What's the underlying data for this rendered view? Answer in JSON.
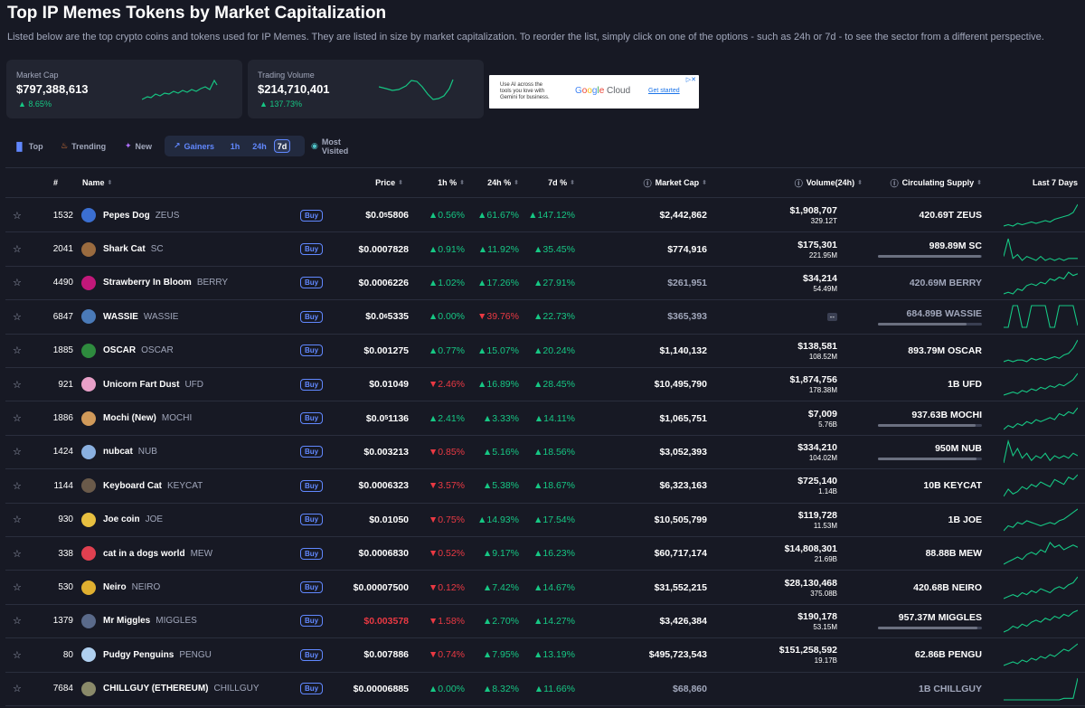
{
  "page": {
    "title": "Top IP Memes Tokens by Market Capitalization",
    "description": "Listed below are the top crypto coins and tokens used for IP Memes. They are listed in size by market capitalization. To reorder the list, simply click on one of the options - such as 24h or 7d - to see the sector from a different perspective."
  },
  "cards": [
    {
      "label": "Market Cap",
      "value": "$797,388,613",
      "change": "8.65%"
    },
    {
      "label": "Trading Volume",
      "value": "$214,710,401",
      "change": "137.73%"
    }
  ],
  "ad": {
    "text": "Use AI across the tools you love with Gemini for business.",
    "brand": "Google Cloud",
    "cta": "Get started"
  },
  "tabs": {
    "top": "Top",
    "trending": "Trending",
    "new": "New",
    "gainers": "Gainers",
    "p1h": "1h",
    "p24h": "24h",
    "p7d": "7d",
    "most_visited": "Most Visited"
  },
  "columns": {
    "rank": "#",
    "name": "Name",
    "price": "Price",
    "h1": "1h %",
    "h24": "24h %",
    "d7": "7d %",
    "market_cap": "Market Cap",
    "volume": "Volume(24h)",
    "supply": "Circulating Supply",
    "last7": "Last 7 Days"
  },
  "buy_label": "Buy",
  "rows": [
    {
      "rank": "1532",
      "name": "Pepes Dog",
      "symbol": "ZEUS",
      "price": "$0.0",
      "price_sub": "5",
      "price_tail": "5806",
      "h1": "0.56%",
      "h1_dir": "up",
      "h24": "61.67%",
      "h24_dir": "up",
      "d7": "147.12%",
      "d7_dir": "up",
      "mcap": "$2,442,862",
      "vol": "$1,908,707",
      "vol2": "329.12T",
      "supply": "420.69T ZEUS",
      "bar": 0,
      "logo": "#3b6fd1",
      "spark": [
        2,
        3,
        2,
        4,
        3,
        4,
        5,
        4,
        5,
        6,
        5,
        7,
        8,
        9,
        10,
        12,
        18
      ]
    },
    {
      "rank": "2041",
      "name": "Shark Cat",
      "symbol": "SC",
      "price": "$0.0007828",
      "h1": "0.91%",
      "h1_dir": "up",
      "h24": "11.92%",
      "h24_dir": "up",
      "d7": "35.45%",
      "d7_dir": "up",
      "mcap": "$774,916",
      "vol": "$175,301",
      "vol2": "221.95M",
      "supply": "989.89M SC",
      "bar": 0.99,
      "logo": "#9a6b3f",
      "spark": [
        8,
        17,
        7,
        9,
        6,
        8,
        7,
        6,
        8,
        6,
        7,
        6,
        7,
        6,
        7,
        7,
        7
      ]
    },
    {
      "rank": "4490",
      "name": "Strawberry In Bloom",
      "symbol": "BERRY",
      "price": "$0.0006226",
      "h1": "1.02%",
      "h1_dir": "up",
      "h24": "17.26%",
      "h24_dir": "up",
      "d7": "27.91%",
      "d7_dir": "up",
      "mcap": "$261,951",
      "mcap_dim": true,
      "vol": "$34,214",
      "vol2": "54.49M",
      "supply": "420.69M BERRY",
      "supply_dim": true,
      "bar": 0,
      "logo": "#c2187a",
      "spark": [
        3,
        4,
        3,
        6,
        5,
        8,
        9,
        8,
        10,
        9,
        12,
        11,
        13,
        12,
        16,
        14,
        15
      ]
    },
    {
      "rank": "6847",
      "name": "WASSIE",
      "symbol": "WASSIE",
      "price": "$0.0",
      "price_sub": "6",
      "price_tail": "5335",
      "h1": "0.00%",
      "h1_dir": "up",
      "h24": "39.76%",
      "h24_dir": "down",
      "d7": "22.73%",
      "d7_dir": "up",
      "mcap": "$365,393",
      "mcap_dim": true,
      "vol": "--",
      "vol2": "",
      "supply": "684.89B WASSIE",
      "supply_dim": true,
      "bar": 0.85,
      "logo": "#4a7ab8",
      "spark": [
        2,
        2,
        14,
        14,
        2,
        2,
        14,
        14,
        14,
        14,
        2,
        2,
        14,
        14,
        14,
        14,
        3
      ]
    },
    {
      "rank": "1885",
      "name": "OSCAR",
      "symbol": "OSCAR",
      "price": "$0.001275",
      "h1": "0.77%",
      "h1_dir": "up",
      "h24": "15.07%",
      "h24_dir": "up",
      "d7": "20.24%",
      "d7_dir": "up",
      "mcap": "$1,140,132",
      "vol": "$138,581",
      "vol2": "108.52M",
      "supply": "893.79M OSCAR",
      "bar": 0,
      "logo": "#2e8b3e",
      "spark": [
        4,
        5,
        4,
        5,
        5,
        4,
        6,
        5,
        6,
        5,
        6,
        7,
        6,
        8,
        9,
        12,
        17
      ]
    },
    {
      "rank": "921",
      "name": "Unicorn Fart Dust",
      "symbol": "UFD",
      "price": "$0.01049",
      "h1": "2.46%",
      "h1_dir": "down",
      "h24": "16.89%",
      "h24_dir": "up",
      "d7": "28.45%",
      "d7_dir": "up",
      "mcap": "$10,495,790",
      "vol": "$1,874,756",
      "vol2": "178.38M",
      "supply": "1B UFD",
      "bar": 0,
      "logo": "#e8a0c8",
      "spark": [
        3,
        4,
        5,
        4,
        6,
        5,
        7,
        6,
        8,
        7,
        9,
        8,
        10,
        9,
        11,
        13,
        17
      ]
    },
    {
      "rank": "1886",
      "name": "Mochi (New)",
      "symbol": "MOCHI",
      "price": "$0.0",
      "price_sub": "5",
      "price_tail": "1136",
      "h1": "2.41%",
      "h1_dir": "up",
      "h24": "3.33%",
      "h24_dir": "up",
      "d7": "14.11%",
      "d7_dir": "up",
      "mcap": "$1,065,751",
      "vol": "$7,009",
      "vol2": "5.76B",
      "supply": "937.63B MOCHI",
      "bar": 0.94,
      "logo": "#d19a5a",
      "spark": [
        3,
        5,
        4,
        6,
        5,
        7,
        6,
        8,
        7,
        8,
        9,
        8,
        11,
        10,
        12,
        11,
        14
      ]
    },
    {
      "rank": "1424",
      "name": "nubcat",
      "symbol": "NUB",
      "price": "$0.003213",
      "h1": "0.85%",
      "h1_dir": "down",
      "h24": "5.16%",
      "h24_dir": "up",
      "d7": "18.56%",
      "d7_dir": "up",
      "mcap": "$3,052,393",
      "vol": "$334,210",
      "vol2": "104.02M",
      "supply": "950M NUB",
      "bar": 0.95,
      "logo": "#8ab0e0",
      "spark": [
        6,
        15,
        9,
        12,
        8,
        10,
        7,
        9,
        8,
        10,
        7,
        9,
        8,
        9,
        8,
        10,
        9
      ]
    },
    {
      "rank": "1144",
      "name": "Keyboard Cat",
      "symbol": "KEYCAT",
      "price": "$0.0006323",
      "h1": "3.57%",
      "h1_dir": "down",
      "h24": "5.38%",
      "h24_dir": "up",
      "d7": "18.67%",
      "d7_dir": "up",
      "mcap": "$6,323,163",
      "vol": "$725,140",
      "vol2": "1.14B",
      "supply": "10B KEYCAT",
      "bar": 0,
      "logo": "#6a5a4a",
      "spark": [
        4,
        7,
        5,
        6,
        8,
        7,
        9,
        8,
        10,
        9,
        8,
        11,
        10,
        9,
        12,
        11,
        13
      ]
    },
    {
      "rank": "930",
      "name": "Joe coin",
      "symbol": "JOE",
      "price": "$0.01050",
      "h1": "0.75%",
      "h1_dir": "down",
      "h24": "14.93%",
      "h24_dir": "up",
      "d7": "17.54%",
      "d7_dir": "up",
      "mcap": "$10,505,799",
      "vol": "$119,728",
      "vol2": "11.53M",
      "supply": "1B JOE",
      "bar": 0,
      "logo": "#e8c040",
      "spark": [
        3,
        6,
        5,
        8,
        7,
        9,
        8,
        7,
        6,
        7,
        8,
        7,
        9,
        10,
        12,
        14,
        16
      ]
    },
    {
      "rank": "338",
      "name": "cat in a dogs world",
      "symbol": "MEW",
      "price": "$0.0006830",
      "h1": "0.52%",
      "h1_dir": "down",
      "h24": "9.17%",
      "h24_dir": "up",
      "d7": "16.23%",
      "d7_dir": "up",
      "mcap": "$60,717,174",
      "vol": "$14,808,301",
      "vol2": "21.69B",
      "supply": "88.88B MEW",
      "bar": 0,
      "logo": "#e04050",
      "spark": [
        3,
        4,
        5,
        6,
        5,
        7,
        8,
        7,
        9,
        8,
        12,
        10,
        11,
        9,
        10,
        11,
        10
      ]
    },
    {
      "rank": "530",
      "name": "Neiro",
      "symbol": "NEIRO",
      "price": "$0.00007500",
      "h1": "0.12%",
      "h1_dir": "down",
      "h24": "7.42%",
      "h24_dir": "up",
      "d7": "14.67%",
      "d7_dir": "up",
      "mcap": "$31,552,215",
      "vol": "$28,130,468",
      "vol2": "375.08B",
      "supply": "420.68B NEIRO",
      "bar": 0,
      "logo": "#e0b030",
      "spark": [
        4,
        5,
        6,
        5,
        7,
        6,
        8,
        7,
        9,
        8,
        7,
        9,
        10,
        9,
        11,
        12,
        15
      ]
    },
    {
      "rank": "1379",
      "name": "Mr Miggles",
      "symbol": "MIGGLES",
      "price": "$0.003578",
      "price_red": true,
      "h1": "1.58%",
      "h1_dir": "down",
      "h24": "2.70%",
      "h24_dir": "up",
      "d7": "14.27%",
      "d7_dir": "up",
      "mcap": "$3,426,384",
      "vol": "$190,178",
      "vol2": "53.15M",
      "supply": "957.37M MIGGLES",
      "bar": 0.96,
      "logo": "#5a6a8a",
      "spark": [
        3,
        4,
        6,
        5,
        7,
        6,
        8,
        9,
        8,
        10,
        9,
        11,
        10,
        12,
        11,
        13,
        14
      ]
    },
    {
      "rank": "80",
      "name": "Pudgy Penguins",
      "symbol": "PENGU",
      "price": "$0.007886",
      "h1": "0.74%",
      "h1_dir": "down",
      "h24": "7.95%",
      "h24_dir": "up",
      "d7": "13.19%",
      "d7_dir": "up",
      "mcap": "$495,723,543",
      "vol": "$151,258,592",
      "vol2": "19.17B",
      "supply": "62.86B PENGU",
      "bar": 0,
      "logo": "#b0d0f0",
      "spark": [
        3,
        4,
        5,
        4,
        6,
        5,
        7,
        6,
        8,
        7,
        9,
        8,
        10,
        12,
        11,
        13,
        15
      ]
    },
    {
      "rank": "7684",
      "name": "CHILLGUY (ETHEREUM)",
      "symbol": "CHILLGUY",
      "price": "$0.00006885",
      "h1": "0.00%",
      "h1_dir": "up",
      "h24": "8.32%",
      "h24_dir": "up",
      "d7": "11.66%",
      "d7_dir": "up",
      "mcap": "$68,860",
      "mcap_dim": true,
      "vol": "",
      "vol2": "",
      "supply": "1B CHILLGUY",
      "supply_dim": true,
      "bar": 0,
      "logo": "#8a8a6a",
      "spark": [
        2,
        2,
        2,
        2,
        2,
        2,
        2,
        2,
        2,
        2,
        2,
        2,
        2,
        3,
        3,
        3,
        16
      ]
    }
  ]
}
